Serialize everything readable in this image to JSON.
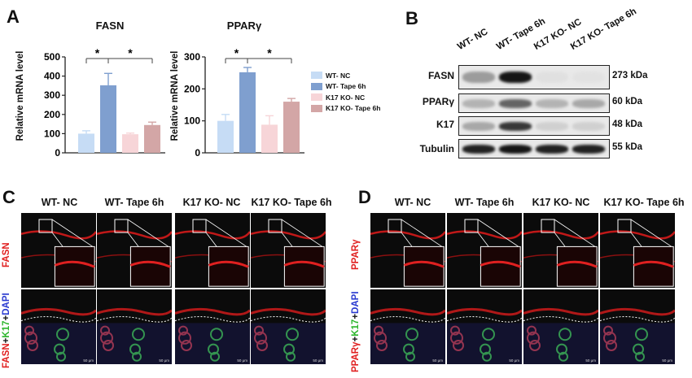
{
  "panels": {
    "A": "A",
    "B": "B",
    "C": "C",
    "D": "D"
  },
  "chart_data": [
    {
      "type": "bar",
      "title": "FASN",
      "ylabel": "Relative mRNA level",
      "categories": [
        "WT- NC",
        "WT- Tape 6h",
        "K17 KO- NC",
        "K17 KO- Tape 6h"
      ],
      "values": [
        100,
        352,
        97,
        145
      ],
      "errors": [
        15,
        62,
        6,
        15
      ],
      "colors": [
        "#c6dcf5",
        "#7f9fcf",
        "#f7d5d8",
        "#d3a6a6"
      ],
      "ylim": [
        0,
        500
      ],
      "yticks": [
        "0",
        "100",
        "200",
        "300",
        "400",
        "500"
      ],
      "annotations": [
        "*",
        "*"
      ]
    },
    {
      "type": "bar",
      "title": "PPARγ",
      "ylabel": "Relative mRNA level",
      "categories": [
        "WT- NC",
        "WT- Tape 6h",
        "K17 KO- NC",
        "K17 KO- Tape 6h"
      ],
      "values": [
        100,
        252,
        88,
        160
      ],
      "errors": [
        20,
        15,
        28,
        10
      ],
      "colors": [
        "#c6dcf5",
        "#7f9fcf",
        "#f7d5d8",
        "#d3a6a6"
      ],
      "ylim": [
        0,
        300
      ],
      "yticks": [
        "0",
        "100",
        "200",
        "300"
      ],
      "annotations": [
        "*",
        "*"
      ]
    }
  ],
  "legend": {
    "items": [
      {
        "label": "WT- NC",
        "color": "#c6dcf5"
      },
      {
        "label": "WT- Tape 6h",
        "color": "#7f9fcf"
      },
      {
        "label": "K17 KO- NC",
        "color": "#f7d5d8"
      },
      {
        "label": "K17 KO- Tape 6h",
        "color": "#d3a6a6"
      }
    ]
  },
  "western_blot": {
    "lanes": [
      "WT- NC",
      "WT- Tape 6h",
      "K17 KO- NC",
      "K17 KO- Tape 6h"
    ],
    "rows": [
      {
        "protein": "FASN",
        "kda": "273 kDa",
        "intensity": [
          0.35,
          0.95,
          0.05,
          0.04
        ]
      },
      {
        "protein": "PPARγ",
        "kda": "60 kDa",
        "intensity": [
          0.25,
          0.6,
          0.25,
          0.3
        ]
      },
      {
        "protein": "K17",
        "kda": "48 kDa",
        "intensity": [
          0.3,
          0.8,
          0.12,
          0.12
        ]
      },
      {
        "protein": "Tubulin",
        "kda": "55 kDa",
        "intensity": [
          0.9,
          0.95,
          0.9,
          0.9
        ]
      }
    ]
  },
  "panel_C": {
    "columns": [
      "WT- NC",
      "WT- Tape 6h",
      "K17 KO- NC",
      "K17 KO- Tape 6h"
    ],
    "row1_label": "FASN",
    "row2_label_parts": [
      "FASN",
      "+",
      "K17",
      "+",
      "DAPI"
    ],
    "scale_bar": "50 μm"
  },
  "panel_D": {
    "columns": [
      "WT- NC",
      "WT- Tape 6h",
      "K17 KO- NC",
      "K17 KO- Tape 6h"
    ],
    "row1_label": "PPARγ",
    "row2_label_parts": [
      "PPARγ",
      "+",
      "K17",
      "+",
      "DAPI"
    ],
    "scale_bar": "50 μm"
  }
}
